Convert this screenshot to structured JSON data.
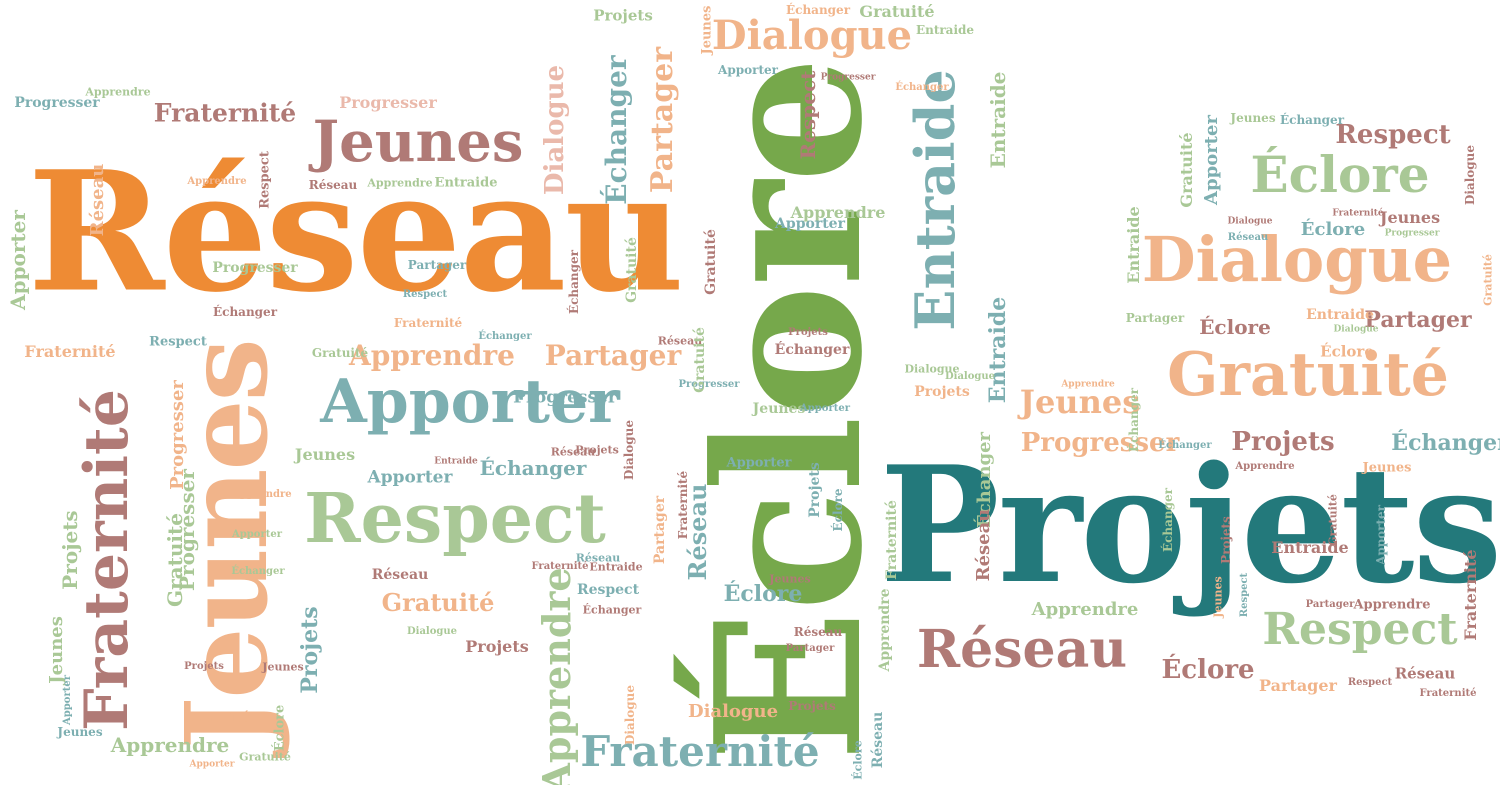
{
  "words": {
    "reseau": "Réseau",
    "eclore": "Éclore",
    "projets": "Projets",
    "jeunes": "Jeunes",
    "apporter": "Apporter",
    "respect": "Respect",
    "fraternite": "Fraternité",
    "gratuite": "Gratuité",
    "dialogue": "Dialogue",
    "entraide": "Entraide",
    "echanger": "Échanger",
    "partager": "Partager",
    "apprendre": "Apprendre",
    "progresser": "Progresser"
  },
  "colors": {
    "orange": "#ee8b34",
    "green": "#76a84b",
    "teal": "#23797b",
    "rose": "#b07a76",
    "cyan": "#7dafb1",
    "sage": "#a9c896",
    "peach": "#f1b48a",
    "blush": "#eab9ab"
  }
}
